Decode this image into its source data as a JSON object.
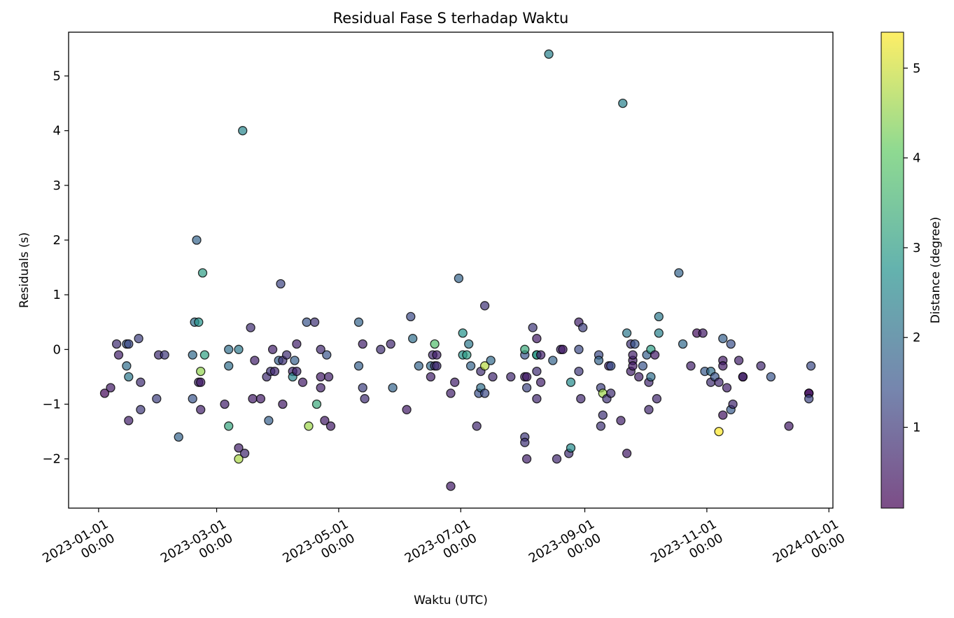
{
  "chart_data": {
    "type": "scatter",
    "title": "Residual Fase S terhadap Waktu",
    "xlabel": "Waktu (UTC)",
    "ylabel": "Residuals (s)",
    "x_ticks": [
      {
        "date": "2023-01-01",
        "lines": [
          "2023-01-01",
          "00:00"
        ]
      },
      {
        "date": "2023-03-01",
        "lines": [
          "2023-03-01",
          "00:00"
        ]
      },
      {
        "date": "2023-05-01",
        "lines": [
          "2023-05-01",
          "00:00"
        ]
      },
      {
        "date": "2023-07-01",
        "lines": [
          "2023-07-01",
          "00:00"
        ]
      },
      {
        "date": "2023-09-01",
        "lines": [
          "2023-09-01",
          "00:00"
        ]
      },
      {
        "date": "2023-11-01",
        "lines": [
          "2023-11-01",
          "00:00"
        ]
      },
      {
        "date": "2024-01-01",
        "lines": [
          "2024-01-01",
          "00:00"
        ]
      }
    ],
    "xlim": [
      "2022-12-17",
      "2024-01-03"
    ],
    "ylim": [
      -2.9,
      5.8
    ],
    "y_ticks": [
      -2,
      -1,
      0,
      1,
      2,
      3,
      4,
      5
    ],
    "colorbar": {
      "label": "Distance (degree)",
      "min": 0.1,
      "max": 5.4,
      "ticks": [
        1,
        2,
        3,
        4,
        5
      ],
      "colormap": [
        "#440154",
        "#3b528b",
        "#21918c",
        "#5ec962",
        "#fde725"
      ]
    },
    "points": [
      {
        "x": "2023-01-04",
        "y": -0.8,
        "d": 0.2
      },
      {
        "x": "2023-01-07",
        "y": -0.7,
        "d": 0.5
      },
      {
        "x": "2023-01-10",
        "y": 0.1,
        "d": 0.8
      },
      {
        "x": "2023-01-11",
        "y": -0.1,
        "d": 0.6
      },
      {
        "x": "2023-01-15",
        "y": 0.1,
        "d": 1.6
      },
      {
        "x": "2023-01-16",
        "y": 0.1,
        "d": 1.3
      },
      {
        "x": "2023-01-15",
        "y": -0.3,
        "d": 2.0
      },
      {
        "x": "2023-01-16",
        "y": -0.5,
        "d": 2.2
      },
      {
        "x": "2023-01-16",
        "y": -1.3,
        "d": 0.6
      },
      {
        "x": "2023-01-21",
        "y": 0.2,
        "d": 1.1
      },
      {
        "x": "2023-01-22",
        "y": -0.6,
        "d": 0.8
      },
      {
        "x": "2023-01-22",
        "y": -1.1,
        "d": 1.0
      },
      {
        "x": "2023-01-30",
        "y": -0.9,
        "d": 1.1
      },
      {
        "x": "2023-01-31",
        "y": -0.1,
        "d": 0.8
      },
      {
        "x": "2023-02-03",
        "y": -0.1,
        "d": 1.0
      },
      {
        "x": "2023-02-10",
        "y": -1.6,
        "d": 1.8
      },
      {
        "x": "2023-02-17",
        "y": -0.1,
        "d": 1.9
      },
      {
        "x": "2023-02-17",
        "y": -0.9,
        "d": 1.5
      },
      {
        "x": "2023-02-18",
        "y": 0.5,
        "d": 2.0
      },
      {
        "x": "2023-02-19",
        "y": 2.0,
        "d": 1.8
      },
      {
        "x": "2023-02-20",
        "y": 0.5,
        "d": 2.8
      },
      {
        "x": "2023-02-20",
        "y": -0.6,
        "d": 0.7
      },
      {
        "x": "2023-02-21",
        "y": -0.6,
        "d": 0.5
      },
      {
        "x": "2023-02-21",
        "y": -0.4,
        "d": 4.5
      },
      {
        "x": "2023-02-21",
        "y": -1.1,
        "d": 0.6
      },
      {
        "x": "2023-02-22",
        "y": 1.4,
        "d": 3.0
      },
      {
        "x": "2023-02-23",
        "y": -0.1,
        "d": 3.1
      },
      {
        "x": "2023-03-05",
        "y": -1.0,
        "d": 0.6
      },
      {
        "x": "2023-03-07",
        "y": 0.0,
        "d": 2.0
      },
      {
        "x": "2023-03-07",
        "y": -0.3,
        "d": 2.0
      },
      {
        "x": "2023-03-07",
        "y": -1.4,
        "d": 3.2
      },
      {
        "x": "2023-03-12",
        "y": -1.8,
        "d": 0.6
      },
      {
        "x": "2023-03-12",
        "y": 0.0,
        "d": 2.2
      },
      {
        "x": "2023-03-12",
        "y": -2.0,
        "d": 4.7
      },
      {
        "x": "2023-03-14",
        "y": 4.0,
        "d": 2.5
      },
      {
        "x": "2023-03-15",
        "y": -1.9,
        "d": 0.7
      },
      {
        "x": "2023-03-18",
        "y": 0.4,
        "d": 0.8
      },
      {
        "x": "2023-03-19",
        "y": -0.9,
        "d": 0.5
      },
      {
        "x": "2023-03-20",
        "y": -0.2,
        "d": 0.6
      },
      {
        "x": "2023-03-23",
        "y": -0.9,
        "d": 0.5
      },
      {
        "x": "2023-03-26",
        "y": -0.5,
        "d": 0.8
      },
      {
        "x": "2023-03-27",
        "y": -1.3,
        "d": 1.7
      },
      {
        "x": "2023-03-28",
        "y": -0.4,
        "d": 0.9
      },
      {
        "x": "2023-03-29",
        "y": 0.0,
        "d": 0.6
      },
      {
        "x": "2023-03-30",
        "y": -0.4,
        "d": 0.7
      },
      {
        "x": "2023-04-01",
        "y": -0.2,
        "d": 1.7
      },
      {
        "x": "2023-04-02",
        "y": 1.2,
        "d": 1.2
      },
      {
        "x": "2023-04-03",
        "y": -0.2,
        "d": 0.9
      },
      {
        "x": "2023-04-03",
        "y": -1.0,
        "d": 0.5
      },
      {
        "x": "2023-04-05",
        "y": -0.1,
        "d": 0.8
      },
      {
        "x": "2023-04-08",
        "y": -0.4,
        "d": 0.7
      },
      {
        "x": "2023-04-08",
        "y": -0.5,
        "d": 2.5
      },
      {
        "x": "2023-04-09",
        "y": -0.2,
        "d": 1.7
      },
      {
        "x": "2023-04-10",
        "y": -0.4,
        "d": 0.7
      },
      {
        "x": "2023-04-10",
        "y": 0.1,
        "d": 0.6
      },
      {
        "x": "2023-04-13",
        "y": -0.6,
        "d": 0.5
      },
      {
        "x": "2023-04-15",
        "y": 0.5,
        "d": 1.5
      },
      {
        "x": "2023-04-16",
        "y": -1.4,
        "d": 4.6
      },
      {
        "x": "2023-04-19",
        "y": 0.5,
        "d": 0.9
      },
      {
        "x": "2023-04-20",
        "y": -1.0,
        "d": 3.3
      },
      {
        "x": "2023-04-22",
        "y": 0.0,
        "d": 0.7
      },
      {
        "x": "2023-04-22",
        "y": -0.5,
        "d": 0.5
      },
      {
        "x": "2023-04-22",
        "y": -0.7,
        "d": 0.6
      },
      {
        "x": "2023-04-24",
        "y": -1.3,
        "d": 0.5
      },
      {
        "x": "2023-04-25",
        "y": -0.1,
        "d": 1.5
      },
      {
        "x": "2023-04-26",
        "y": -0.5,
        "d": 0.6
      },
      {
        "x": "2023-04-27",
        "y": -1.4,
        "d": 0.5
      },
      {
        "x": "2023-05-11",
        "y": 0.5,
        "d": 1.8
      },
      {
        "x": "2023-05-11",
        "y": -0.3,
        "d": 1.7
      },
      {
        "x": "2023-05-13",
        "y": 0.1,
        "d": 0.6
      },
      {
        "x": "2023-05-13",
        "y": -0.7,
        "d": 1.1
      },
      {
        "x": "2023-05-14",
        "y": -0.9,
        "d": 0.8
      },
      {
        "x": "2023-05-22",
        "y": 0.0,
        "d": 0.8
      },
      {
        "x": "2023-05-27",
        "y": 0.1,
        "d": 0.7
      },
      {
        "x": "2023-05-28",
        "y": -0.7,
        "d": 1.8
      },
      {
        "x": "2023-06-04",
        "y": -1.1,
        "d": 0.5
      },
      {
        "x": "2023-06-06",
        "y": 0.6,
        "d": 1.3
      },
      {
        "x": "2023-06-07",
        "y": 0.2,
        "d": 2.0
      },
      {
        "x": "2023-06-10",
        "y": -0.3,
        "d": 1.8
      },
      {
        "x": "2023-06-16",
        "y": -0.5,
        "d": 0.6
      },
      {
        "x": "2023-06-16",
        "y": -0.3,
        "d": 1.9
      },
      {
        "x": "2023-06-17",
        "y": -0.1,
        "d": 0.7
      },
      {
        "x": "2023-06-18",
        "y": 0.1,
        "d": 3.8
      },
      {
        "x": "2023-06-18",
        "y": -0.3,
        "d": 0.9
      },
      {
        "x": "2023-06-19",
        "y": -0.1,
        "d": 0.6
      },
      {
        "x": "2023-06-19",
        "y": -0.3,
        "d": 0.8
      },
      {
        "x": "2023-06-26",
        "y": -2.5,
        "d": 0.5
      },
      {
        "x": "2023-06-26",
        "y": -0.8,
        "d": 0.6
      },
      {
        "x": "2023-06-28",
        "y": -0.6,
        "d": 0.6
      },
      {
        "x": "2023-06-30",
        "y": 1.3,
        "d": 1.8
      },
      {
        "x": "2023-07-02",
        "y": 0.3,
        "d": 2.8
      },
      {
        "x": "2023-07-02",
        "y": -0.1,
        "d": 2.8
      },
      {
        "x": "2023-07-04",
        "y": -0.1,
        "d": 3.0
      },
      {
        "x": "2023-07-05",
        "y": 0.1,
        "d": 2.2
      },
      {
        "x": "2023-07-06",
        "y": -0.3,
        "d": 1.8
      },
      {
        "x": "2023-07-09",
        "y": -1.4,
        "d": 0.7
      },
      {
        "x": "2023-07-10",
        "y": -0.8,
        "d": 1.4
      },
      {
        "x": "2023-07-11",
        "y": -0.4,
        "d": 0.8
      },
      {
        "x": "2023-07-11",
        "y": -0.7,
        "d": 2.0
      },
      {
        "x": "2023-07-13",
        "y": 0.8,
        "d": 0.9
      },
      {
        "x": "2023-07-13",
        "y": -0.3,
        "d": 4.8
      },
      {
        "x": "2023-07-13",
        "y": -0.8,
        "d": 1.3
      },
      {
        "x": "2023-07-16",
        "y": -0.2,
        "d": 1.9
      },
      {
        "x": "2023-07-17",
        "y": -0.5,
        "d": 0.7
      },
      {
        "x": "2023-07-26",
        "y": -0.5,
        "d": 0.7
      },
      {
        "x": "2023-08-02",
        "y": -0.5,
        "d": 0.6
      },
      {
        "x": "2023-08-02",
        "y": -0.1,
        "d": 1.5
      },
      {
        "x": "2023-08-02",
        "y": 0.0,
        "d": 3.3
      },
      {
        "x": "2023-08-02",
        "y": -1.6,
        "d": 1.0
      },
      {
        "x": "2023-08-02",
        "y": -1.7,
        "d": 0.9
      },
      {
        "x": "2023-08-03",
        "y": -0.5,
        "d": 0.5
      },
      {
        "x": "2023-08-03",
        "y": -0.7,
        "d": 1.2
      },
      {
        "x": "2023-08-03",
        "y": -2.0,
        "d": 0.6
      },
      {
        "x": "2023-08-06",
        "y": 0.4,
        "d": 1.0
      },
      {
        "x": "2023-08-08",
        "y": 0.2,
        "d": 0.5
      },
      {
        "x": "2023-08-08",
        "y": -0.1,
        "d": 2.7
      },
      {
        "x": "2023-08-08",
        "y": -0.1,
        "d": 3.0
      },
      {
        "x": "2023-08-08",
        "y": -0.4,
        "d": 0.8
      },
      {
        "x": "2023-08-08",
        "y": -0.9,
        "d": 0.7
      },
      {
        "x": "2023-08-10",
        "y": -0.6,
        "d": 0.6
      },
      {
        "x": "2023-08-10",
        "y": -0.1,
        "d": 0.6
      },
      {
        "x": "2023-08-14",
        "y": 5.4,
        "d": 2.4
      },
      {
        "x": "2023-08-16",
        "y": -0.2,
        "d": 1.8
      },
      {
        "x": "2023-08-18",
        "y": -2.0,
        "d": 0.7
      },
      {
        "x": "2023-08-20",
        "y": 0.0,
        "d": 0.7
      },
      {
        "x": "2023-08-21",
        "y": 0.0,
        "d": 0.5
      },
      {
        "x": "2023-08-24",
        "y": -1.9,
        "d": 0.8
      },
      {
        "x": "2023-08-25",
        "y": -0.6,
        "d": 2.6
      },
      {
        "x": "2023-08-25",
        "y": -1.8,
        "d": 2.6
      },
      {
        "x": "2023-08-29",
        "y": 0.0,
        "d": 1.3
      },
      {
        "x": "2023-08-29",
        "y": -0.4,
        "d": 1.0
      },
      {
        "x": "2023-08-29",
        "y": 0.5,
        "d": 0.6
      },
      {
        "x": "2023-08-30",
        "y": -0.9,
        "d": 0.7
      },
      {
        "x": "2023-08-31",
        "y": 0.4,
        "d": 1.1
      },
      {
        "x": "2023-09-08",
        "y": -0.1,
        "d": 1.3
      },
      {
        "x": "2023-09-08",
        "y": -0.2,
        "d": 1.8
      },
      {
        "x": "2023-09-09",
        "y": -0.7,
        "d": 1.1
      },
      {
        "x": "2023-09-09",
        "y": -1.4,
        "d": 0.9
      },
      {
        "x": "2023-09-10",
        "y": -0.8,
        "d": 4.6
      },
      {
        "x": "2023-09-10",
        "y": -1.2,
        "d": 0.9
      },
      {
        "x": "2023-09-12",
        "y": -0.9,
        "d": 0.9
      },
      {
        "x": "2023-09-13",
        "y": -0.3,
        "d": 0.6
      },
      {
        "x": "2023-09-14",
        "y": -0.3,
        "d": 1.4
      },
      {
        "x": "2023-09-14",
        "y": -0.8,
        "d": 0.8
      },
      {
        "x": "2023-09-19",
        "y": -1.3,
        "d": 0.6
      },
      {
        "x": "2023-09-20",
        "y": 4.5,
        "d": 2.4
      },
      {
        "x": "2023-09-22",
        "y": 0.3,
        "d": 2.2
      },
      {
        "x": "2023-09-22",
        "y": -1.9,
        "d": 0.5
      },
      {
        "x": "2023-09-24",
        "y": 0.1,
        "d": 0.9
      },
      {
        "x": "2023-09-24",
        "y": -0.4,
        "d": 0.6
      },
      {
        "x": "2023-09-25",
        "y": -0.2,
        "d": 0.5
      },
      {
        "x": "2023-09-25",
        "y": -0.3,
        "d": 0.5
      },
      {
        "x": "2023-09-25",
        "y": -0.1,
        "d": 0.6
      },
      {
        "x": "2023-09-26",
        "y": 0.1,
        "d": 1.5
      },
      {
        "x": "2023-09-28",
        "y": -0.5,
        "d": 0.6
      },
      {
        "x": "2023-09-30",
        "y": -0.3,
        "d": 1.5
      },
      {
        "x": "2023-10-02",
        "y": -0.1,
        "d": 1.7
      },
      {
        "x": "2023-10-03",
        "y": -0.6,
        "d": 0.7
      },
      {
        "x": "2023-10-03",
        "y": -1.1,
        "d": 0.7
      },
      {
        "x": "2023-10-04",
        "y": 0.0,
        "d": 3.0
      },
      {
        "x": "2023-10-04",
        "y": -0.5,
        "d": 2.0
      },
      {
        "x": "2023-10-06",
        "y": -0.1,
        "d": 0.5
      },
      {
        "x": "2023-10-07",
        "y": -0.9,
        "d": 0.7
      },
      {
        "x": "2023-10-08",
        "y": 0.6,
        "d": 2.2
      },
      {
        "x": "2023-10-08",
        "y": 0.3,
        "d": 2.4
      },
      {
        "x": "2023-10-18",
        "y": 1.4,
        "d": 1.8
      },
      {
        "x": "2023-10-20",
        "y": 0.1,
        "d": 1.9
      },
      {
        "x": "2023-10-24",
        "y": -0.3,
        "d": 0.6
      },
      {
        "x": "2023-10-27",
        "y": 0.3,
        "d": 0.3
      },
      {
        "x": "2023-10-30",
        "y": 0.3,
        "d": 0.5
      },
      {
        "x": "2023-10-31",
        "y": -0.4,
        "d": 1.6
      },
      {
        "x": "2023-11-03",
        "y": -0.4,
        "d": 2.0
      },
      {
        "x": "2023-11-03",
        "y": -0.6,
        "d": 0.8
      },
      {
        "x": "2023-11-05",
        "y": -0.5,
        "d": 1.5
      },
      {
        "x": "2023-11-07",
        "y": -1.5,
        "d": 5.4
      },
      {
        "x": "2023-11-07",
        "y": -0.6,
        "d": 0.7
      },
      {
        "x": "2023-11-09",
        "y": 0.2,
        "d": 1.7
      },
      {
        "x": "2023-11-09",
        "y": -0.2,
        "d": 0.5
      },
      {
        "x": "2023-11-09",
        "y": -0.3,
        "d": 0.5
      },
      {
        "x": "2023-11-09",
        "y": -1.2,
        "d": 0.4
      },
      {
        "x": "2023-11-11",
        "y": -0.7,
        "d": 0.6
      },
      {
        "x": "2023-11-13",
        "y": 0.1,
        "d": 1.4
      },
      {
        "x": "2023-11-13",
        "y": -1.1,
        "d": 1.6
      },
      {
        "x": "2023-11-14",
        "y": -1.0,
        "d": 0.7
      },
      {
        "x": "2023-11-17",
        "y": -0.2,
        "d": 0.6
      },
      {
        "x": "2023-11-19",
        "y": -0.5,
        "d": 1.9
      },
      {
        "x": "2023-11-19",
        "y": -0.5,
        "d": 0.2
      },
      {
        "x": "2023-11-28",
        "y": -0.3,
        "d": 0.7
      },
      {
        "x": "2023-12-03",
        "y": -0.5,
        "d": 1.5
      },
      {
        "x": "2023-12-12",
        "y": -1.4,
        "d": 0.5
      },
      {
        "x": "2023-12-22",
        "y": -0.8,
        "d": 0.7
      },
      {
        "x": "2023-12-22",
        "y": -0.8,
        "d": 0.2
      },
      {
        "x": "2023-12-22",
        "y": -0.9,
        "d": 1.2
      },
      {
        "x": "2023-12-23",
        "y": -0.3,
        "d": 1.3
      }
    ]
  }
}
